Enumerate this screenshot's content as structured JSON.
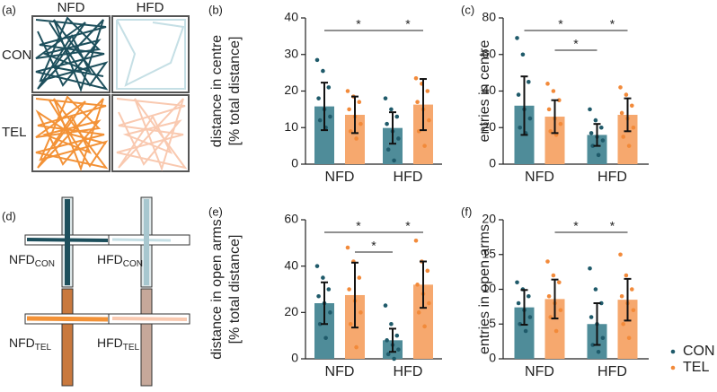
{
  "panels": {
    "a": {
      "label": "(a)",
      "columns": [
        "NFD",
        "HFD"
      ],
      "rows": [
        "CON",
        "TEL"
      ]
    },
    "d": {
      "label": "(d)",
      "mazes": [
        {
          "main": "NFD",
          "sub": "CON"
        },
        {
          "main": "HFD",
          "sub": "CON"
        },
        {
          "main": "NFD",
          "sub": "TEL"
        },
        {
          "main": "HFD",
          "sub": "TEL"
        }
      ]
    }
  },
  "legend": [
    {
      "name": "CON",
      "color": "#1f5a6a"
    },
    {
      "name": "TEL",
      "color": "#f28a3a"
    }
  ],
  "chart_data": [
    {
      "type": "bar",
      "panel": "(b)",
      "ylabel": [
        "distance in centre",
        "[% total distance]"
      ],
      "categories": [
        "NFD",
        "HFD"
      ],
      "ylim": [
        0,
        40
      ],
      "yticks": [
        0,
        10,
        20,
        30,
        40
      ],
      "series": [
        {
          "color": "#4f8c99",
          "point_color": "#1f5a6a",
          "values": [
            15.8,
            9.9
          ],
          "errors": [
            6.5,
            4.3
          ],
          "points": [
            [
              28.5,
              25.5,
              21,
              18,
              15,
              13,
              12,
              10
            ],
            [
              18,
              15,
              13,
              11,
              9,
              7,
              4,
              1
            ]
          ]
        },
        {
          "color": "#f6a86e",
          "point_color": "#f28a3a",
          "values": [
            13.5,
            16.3
          ],
          "errors": [
            5,
            7
          ],
          "points": [
            [
              20,
              18.5,
              17,
              15,
              13,
              11,
              9,
              7
            ],
            [
              23.5,
              22,
              20,
              17,
              15,
              12,
              9,
              5
            ]
          ]
        }
      ],
      "significance": [
        {
          "from": [
            0,
            0
          ],
          "to": [
            1,
            0
          ],
          "label": "*"
        },
        {
          "from": [
            1,
            0
          ],
          "to": [
            1,
            1
          ],
          "label": "*"
        }
      ]
    },
    {
      "type": "bar",
      "panel": "(c)",
      "ylabel": [
        "entries in centre"
      ],
      "categories": [
        "NFD",
        "HFD"
      ],
      "ylim": [
        0,
        80
      ],
      "yticks": [
        0,
        20,
        40,
        60,
        80
      ],
      "series": [
        {
          "color": "#4f8c99",
          "point_color": "#1f5a6a",
          "values": [
            32,
            16
          ],
          "errors": [
            16,
            6
          ],
          "points": [
            [
              69,
              60,
              45,
              38,
              30,
              25,
              20,
              17
            ],
            [
              30,
              24,
              20,
              17,
              15,
              13,
              10,
              5
            ]
          ]
        },
        {
          "color": "#f6a86e",
          "point_color": "#f28a3a",
          "values": [
            26,
            27
          ],
          "errors": [
            9,
            9
          ],
          "points": [
            [
              44,
              40,
              35,
              30,
              25,
              22,
              18,
              16
            ],
            [
              42,
              38,
              32,
              28,
              25,
              20,
              15,
              10
            ]
          ]
        }
      ],
      "significance": [
        {
          "from": [
            0,
            0
          ],
          "to": [
            1,
            0
          ],
          "label": "*"
        },
        {
          "from": [
            0,
            1
          ],
          "to": [
            1,
            0
          ],
          "label": "*"
        },
        {
          "from": [
            1,
            0
          ],
          "to": [
            1,
            1
          ],
          "label": "*"
        }
      ]
    },
    {
      "type": "bar",
      "panel": "(e)",
      "ylabel": [
        "distance in open arms",
        "[% total distance]"
      ],
      "categories": [
        "NFD",
        "HFD"
      ],
      "ylim": [
        0,
        60
      ],
      "yticks": [
        0,
        20,
        40,
        60
      ],
      "series": [
        {
          "color": "#4f8c99",
          "point_color": "#1f5a6a",
          "values": [
            24,
            8
          ],
          "errors": [
            9,
            5
          ],
          "points": [
            [
              40,
              35,
              30,
              27,
              24,
              20,
              15,
              9
            ],
            [
              23,
              15,
              10,
              8,
              6,
              4,
              2,
              0
            ]
          ]
        },
        {
          "color": "#f6a86e",
          "point_color": "#f28a3a",
          "values": [
            27.5,
            32
          ],
          "errors": [
            14,
            10
          ],
          "points": [
            [
              48,
              42,
              35,
              30,
              25,
              20,
              15,
              5
            ],
            [
              51,
              42,
              38,
              32,
              28,
              24,
              20,
              14
            ]
          ]
        }
      ],
      "significance": [
        {
          "from": [
            0,
            0
          ],
          "to": [
            1,
            0
          ],
          "label": "*"
        },
        {
          "from": [
            0,
            1
          ],
          "to": [
            1,
            0
          ],
          "label": "*"
        },
        {
          "from": [
            1,
            0
          ],
          "to": [
            1,
            1
          ],
          "label": "*"
        }
      ]
    },
    {
      "type": "bar",
      "panel": "(f)",
      "ylabel": [
        "entries in open arms"
      ],
      "categories": [
        "NFD",
        "HFD"
      ],
      "ylim": [
        0,
        20
      ],
      "yticks": [
        0,
        5,
        10,
        15,
        20
      ],
      "series": [
        {
          "color": "#4f8c99",
          "point_color": "#1f5a6a",
          "values": [
            7.4,
            5
          ],
          "errors": [
            2.5,
            3
          ],
          "points": [
            [
              11,
              10,
              9,
              8,
              7,
              6,
              5,
              4
            ],
            [
              13,
              10,
              8,
              6,
              5,
              3,
              2,
              1
            ]
          ]
        },
        {
          "color": "#f6a86e",
          "point_color": "#f28a3a",
          "values": [
            8.6,
            8.5
          ],
          "errors": [
            2.8,
            3
          ],
          "points": [
            [
              14,
              12,
              11,
              9,
              8,
              7,
              6,
              4
            ],
            [
              15,
              12,
              10,
              9,
              8,
              7,
              5,
              3
            ]
          ]
        }
      ],
      "significance": [
        {
          "from": [
            0,
            1
          ],
          "to": [
            1,
            0
          ],
          "label": "*"
        },
        {
          "from": [
            1,
            0
          ],
          "to": [
            1,
            1
          ],
          "label": "*"
        }
      ]
    }
  ]
}
